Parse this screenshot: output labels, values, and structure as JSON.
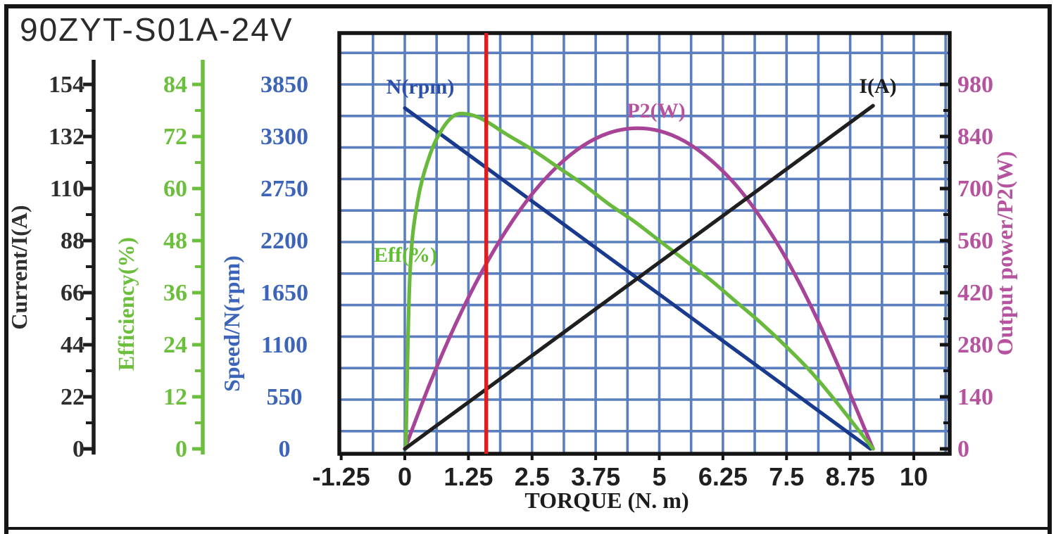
{
  "title": "90ZYT-S01A-24V",
  "x_axis": {
    "title": "TORQUE (N. m)",
    "tick_labels": [
      "-1.25",
      "0",
      "1.25",
      "2.5",
      "3.75",
      "5",
      "6.25",
      "7.5",
      "8.75",
      "10"
    ]
  },
  "y_axes": {
    "current": {
      "title": "Current/I(A)",
      "ticks": [
        0,
        22,
        44,
        66,
        88,
        110,
        132,
        154
      ],
      "max": 154,
      "color": "#2e2e2e"
    },
    "efficiency": {
      "title": "Efficiency(%)",
      "ticks": [
        0,
        12,
        24,
        36,
        48,
        60,
        72,
        84
      ],
      "max": 84,
      "color": "#6cbf3c"
    },
    "speed": {
      "title": "Speed/N(rpm)",
      "ticks": [
        0,
        550,
        1100,
        1650,
        2200,
        2750,
        3300,
        3850
      ],
      "max": 3850,
      "color": "#3c64b8"
    },
    "power": {
      "title": "Output power/P2(W)",
      "ticks": [
        0,
        140,
        280,
        420,
        560,
        700,
        840,
        980
      ],
      "max": 980,
      "color": "#b5539f"
    }
  },
  "curve_labels": {
    "speed": "N(rpm)",
    "current": "I(A)",
    "power": "P2(W)",
    "efficiency": "Eff(%)"
  },
  "red_line": {
    "torque": 1.6,
    "color": "#e11e1e"
  },
  "grid": {
    "color": "#5b7ec1",
    "x_step_torque": 0.625
  },
  "frame_color": "#141414",
  "chart_data": {
    "type": "line",
    "title": "90ZYT-S01A-24V",
    "xlabel": "TORQUE (N. m)",
    "x_range": [
      -1.25,
      10.7
    ],
    "grid": "on",
    "series": [
      {
        "name": "N(rpm)",
        "ylabel": "Speed/N(rpm)",
        "color": "#1a3a8e",
        "axis_max": 3850,
        "x": [
          0,
          1,
          2,
          3,
          4,
          5,
          6,
          7,
          8,
          9.15
        ],
        "values": [
          3600,
          3207,
          2813,
          2420,
          2026,
          1633,
          1239,
          846,
          452,
          0
        ]
      },
      {
        "name": "P2(W)",
        "ylabel": "Output power/P2(W)",
        "color": "#a84497",
        "axis_max": 980,
        "x": [
          0,
          0.5,
          1,
          1.5,
          2,
          2.5,
          3,
          3.5,
          4,
          4.5,
          5,
          5.5,
          6,
          6.5,
          7,
          7.5,
          8,
          8.5,
          9.2
        ],
        "values": [
          0,
          178,
          336,
          473,
          589,
          685,
          760,
          815,
          849,
          862,
          855,
          827,
          778,
          710,
          620,
          510,
          378,
          228,
          0
        ]
      },
      {
        "name": "Eff(%)",
        "ylabel": "Efficiency(%)",
        "color": "#68b93c",
        "axis_max": 84,
        "x": [
          0.02,
          0.1,
          0.25,
          0.5,
          0.75,
          1,
          1.3,
          1.6,
          2,
          2.5,
          3,
          3.5,
          4,
          4.5,
          5,
          5.5,
          6,
          6.5,
          7,
          7.5,
          8,
          8.5,
          9.2
        ],
        "values": [
          0,
          40,
          57,
          68,
          74,
          77,
          77,
          75.5,
          72.5,
          69,
          65,
          61,
          56.5,
          52.5,
          48,
          43.5,
          39,
          34,
          29,
          23.5,
          17.5,
          10.5,
          0
        ]
      },
      {
        "name": "I(A)",
        "ylabel": "Current/I(A)",
        "color": "#1f1f1f",
        "axis_max": 154,
        "x": [
          0,
          9.2
        ],
        "values": [
          0,
          145
        ]
      }
    ]
  }
}
